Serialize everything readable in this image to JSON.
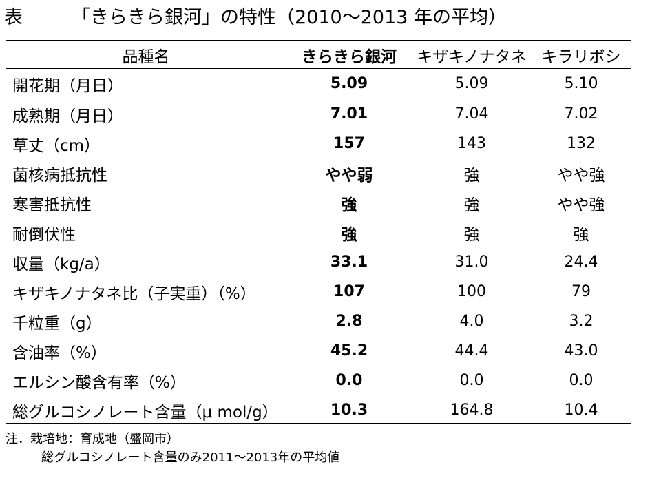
{
  "title": {
    "label": "表",
    "text": "「きらきら銀河」の特性（2010～2013 年の平均）"
  },
  "table": {
    "headers": [
      "品種名",
      "きらきら銀河",
      "キザキノナタネ",
      "キラリボシ"
    ],
    "rows": [
      [
        "開花期（月日）",
        "5.09",
        "5.09",
        "5.10"
      ],
      [
        "成熟期（月日）",
        "7.01",
        "7.04",
        "7.02"
      ],
      [
        "草丈（cm）",
        "157",
        "143",
        "132"
      ],
      [
        "菌核病抵抗性",
        "やや弱",
        "強",
        "やや強"
      ],
      [
        "寒害抵抗性",
        "強",
        "強",
        "やや強"
      ],
      [
        "耐倒伏性",
        "強",
        "強",
        "強"
      ],
      [
        "収量（kg/a）",
        "33.1",
        "31.0",
        "24.4"
      ],
      [
        "キザキノナタネ比（子実重）（%）",
        "107",
        "100",
        "79"
      ],
      [
        "千粒重（g）",
        "2.8",
        "4.0",
        "3.2"
      ],
      [
        "含油率（%）",
        "45.2",
        "44.4",
        "43.0"
      ],
      [
        "エルシン酸含有率（%）",
        "0.0",
        "0.0",
        "0.0"
      ],
      [
        "総グルコシノレート含量（μ mol/g）",
        "10.3",
        "164.8",
        "10.4"
      ]
    ]
  },
  "notes": {
    "line1": "注．栽培地：育成地（盛岡市）",
    "line2": "総グルコシノレート含量のみ2011～2013年の平均値"
  }
}
